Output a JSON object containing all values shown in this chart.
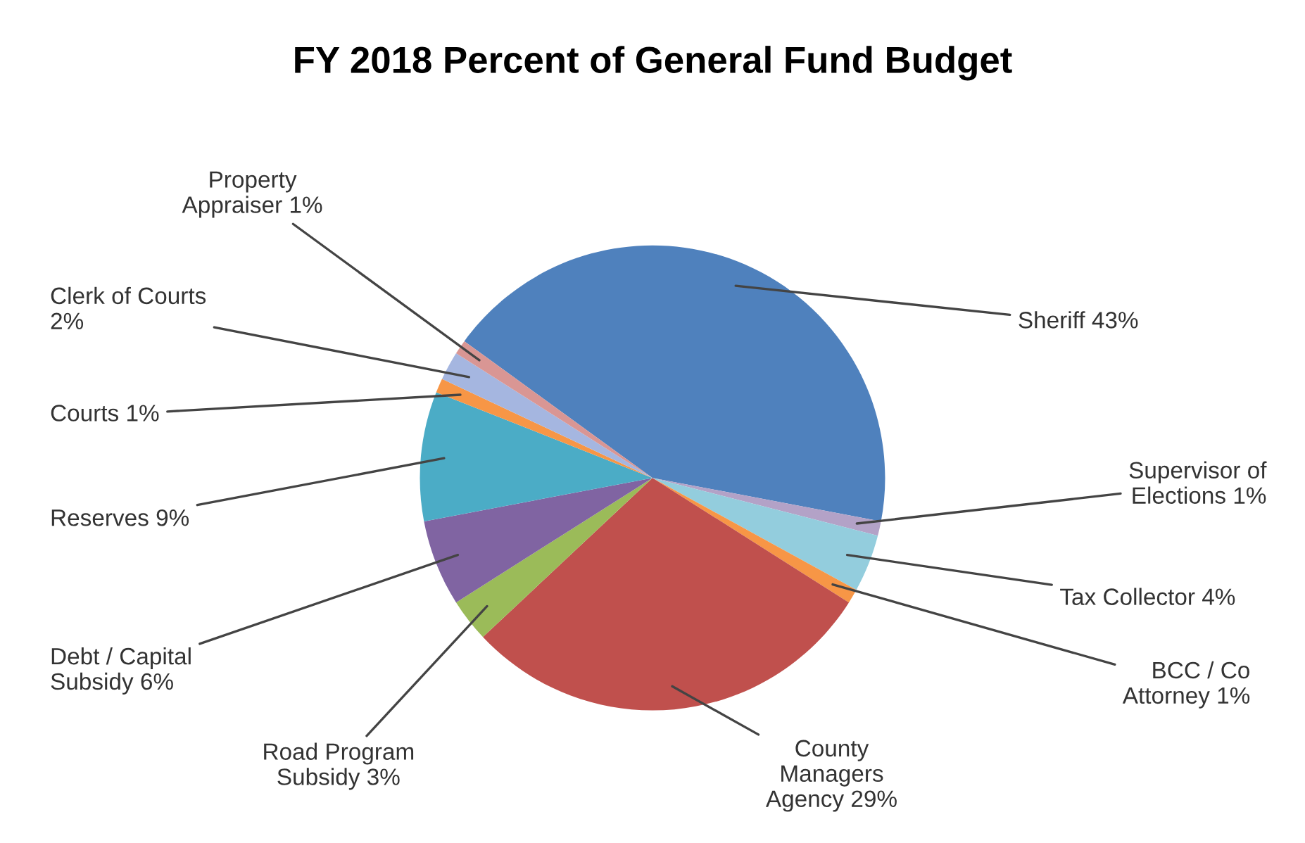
{
  "chart_data": {
    "type": "pie",
    "title": "FY 2018 Percent of General Fund Budget",
    "categories": [
      "Sheriff",
      "Supervisor of\nElections",
      "Tax Collector",
      "BCC / Co\nAttorney",
      "County\nManagers\nAgency",
      "Road Program\nSubsidy",
      "Debt / Capital\nSubsidy",
      "Reserves",
      "Courts",
      "Clerk of Courts",
      "Property\nAppraiser"
    ],
    "values": [
      43,
      1,
      4,
      1,
      29,
      3,
      6,
      9,
      1,
      2,
      1
    ],
    "colors": [
      "#4f81bd",
      "#b3a2c7",
      "#93cddd",
      "#f79646",
      "#c0504d",
      "#9bbb59",
      "#8064a2",
      "#4bacc6",
      "#f79646",
      "#a5b6e0",
      "#d99694"
    ],
    "value_labels": [
      "43%",
      "1%",
      "4%",
      "1%",
      "29%",
      "3%",
      "6%",
      "9%",
      "1%",
      "2%",
      "1%"
    ]
  }
}
